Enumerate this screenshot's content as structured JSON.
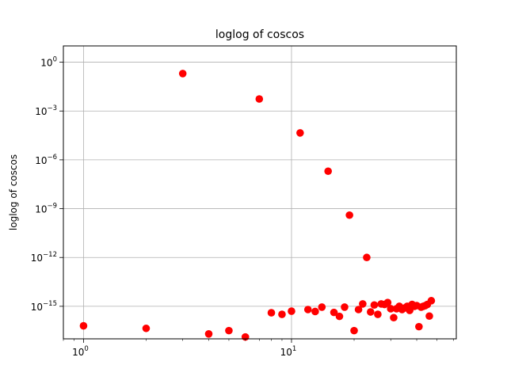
{
  "chart_data": {
    "type": "scatter",
    "title": "loglog of coscos",
    "xlabel": "",
    "ylabel": "loglog of coscos",
    "x_scale": "log",
    "y_scale": "log",
    "xlim": [
      0.8,
      62
    ],
    "ylim": [
      1e-17,
      10
    ],
    "grid": true,
    "marker_color": "#ff0000",
    "x_ticks": [
      {
        "base": "10",
        "exp": "0"
      },
      {
        "base": "10",
        "exp": "1"
      }
    ],
    "y_ticks": [
      {
        "base": "10",
        "exp": "0"
      },
      {
        "base": "10",
        "exp": "−3"
      },
      {
        "base": "10",
        "exp": "−6"
      },
      {
        "base": "10",
        "exp": "−9"
      },
      {
        "base": "10",
        "exp": "−12"
      },
      {
        "base": "10",
        "exp": "−15"
      }
    ],
    "points": [
      {
        "x": 1,
        "y": 6.3e-17
      },
      {
        "x": 2,
        "y": 4.4e-17
      },
      {
        "x": 3,
        "y": 0.2
      },
      {
        "x": 4,
        "y": 2e-17
      },
      {
        "x": 5,
        "y": 3.2e-17
      },
      {
        "x": 6,
        "y": 1.3e-17
      },
      {
        "x": 7,
        "y": 0.0055
      },
      {
        "x": 8,
        "y": 4e-16
      },
      {
        "x": 9,
        "y": 3.2e-16
      },
      {
        "x": 10,
        "y": 5e-16
      },
      {
        "x": 11,
        "y": 4.5e-05
      },
      {
        "x": 12,
        "y": 6.3e-16
      },
      {
        "x": 13,
        "y": 4.8e-16
      },
      {
        "x": 14,
        "y": 8.9e-16
      },
      {
        "x": 15,
        "y": 2e-07
      },
      {
        "x": 16,
        "y": 4.2e-16
      },
      {
        "x": 17,
        "y": 2.4e-16
      },
      {
        "x": 18,
        "y": 8.9e-16
      },
      {
        "x": 19,
        "y": 4e-10
      },
      {
        "x": 20,
        "y": 3.2e-17
      },
      {
        "x": 21,
        "y": 6.3e-16
      },
      {
        "x": 22,
        "y": 1.4e-15
      },
      {
        "x": 23,
        "y": 1e-12
      },
      {
        "x": 24,
        "y": 4.5e-16
      },
      {
        "x": 25,
        "y": 1.2e-15
      },
      {
        "x": 26,
        "y": 3.2e-16
      },
      {
        "x": 27,
        "y": 1.4e-15
      },
      {
        "x": 28,
        "y": 1.3e-15
      },
      {
        "x": 29,
        "y": 1.7e-15
      },
      {
        "x": 30,
        "y": 7.1e-16
      },
      {
        "x": 31,
        "y": 2e-16
      },
      {
        "x": 32,
        "y": 7.1e-16
      },
      {
        "x": 33,
        "y": 1e-15
      },
      {
        "x": 34,
        "y": 6.3e-16
      },
      {
        "x": 35,
        "y": 7.9e-16
      },
      {
        "x": 36,
        "y": 1e-15
      },
      {
        "x": 37,
        "y": 5.6e-16
      },
      {
        "x": 38,
        "y": 1.3e-15
      },
      {
        "x": 39,
        "y": 1e-15
      },
      {
        "x": 40,
        "y": 1.1e-15
      },
      {
        "x": 41,
        "y": 5.6e-17
      },
      {
        "x": 42,
        "y": 8.9e-16
      },
      {
        "x": 43,
        "y": 1e-15
      },
      {
        "x": 44,
        "y": 1.1e-15
      },
      {
        "x": 45,
        "y": 1.3e-15
      },
      {
        "x": 46,
        "y": 2.5e-16
      },
      {
        "x": 47,
        "y": 2.2e-15
      }
    ]
  }
}
